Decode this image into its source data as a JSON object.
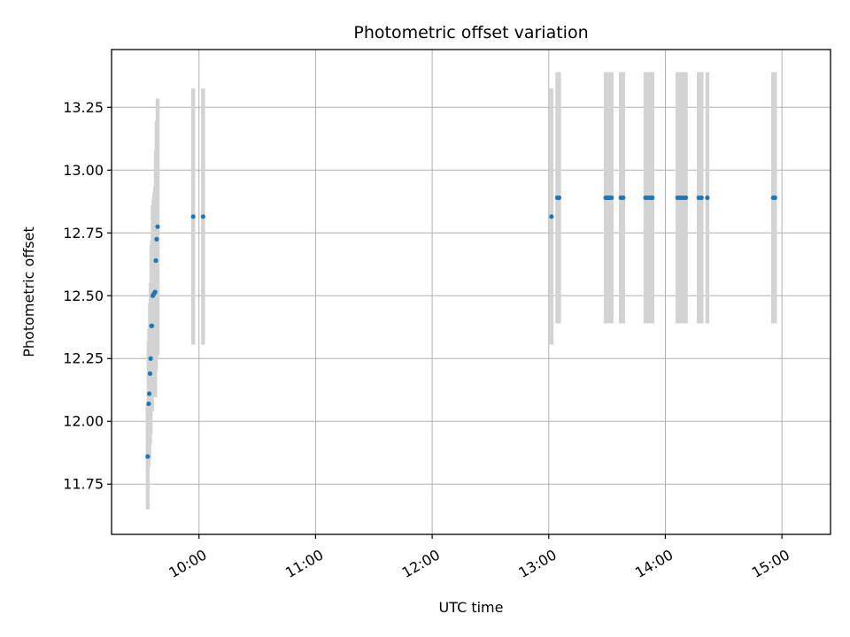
{
  "chart_data": {
    "type": "scatter",
    "title": "Photometric offset variation",
    "xlabel": "UTC time",
    "ylabel": "Photometric offset",
    "xlim": [
      "09:15",
      "15:25"
    ],
    "ylim": [
      11.55,
      13.48
    ],
    "x_ticks": [
      "10:00",
      "11:00",
      "12:00",
      "13:00",
      "14:00",
      "15:00"
    ],
    "y_ticks": [
      "11.75",
      "12.00",
      "12.25",
      "12.50",
      "12.75",
      "13.00",
      "13.25"
    ],
    "grid": true,
    "colors": {
      "points": "#1f77b4",
      "errorbars": "#d3d3d3",
      "grid": "#b0b0b0"
    },
    "points": [
      {
        "t": "09:33:36",
        "y": 11.86,
        "err": 0.21
      },
      {
        "t": "09:34:06",
        "y": 12.07,
        "err": 0.25
      },
      {
        "t": "09:34:24",
        "y": 12.11,
        "err": 0.26
      },
      {
        "t": "09:34:48",
        "y": 12.19,
        "err": 0.28
      },
      {
        "t": "09:35:06",
        "y": 12.25,
        "err": 0.3
      },
      {
        "t": "09:35:30",
        "y": 12.38,
        "err": 0.32
      },
      {
        "t": "09:35:48",
        "y": 12.38,
        "err": 0.34
      },
      {
        "t": "09:36:12",
        "y": 12.5,
        "err": 0.36
      },
      {
        "t": "09:36:36",
        "y": 12.505,
        "err": 0.38
      },
      {
        "t": "09:37:00",
        "y": 12.51,
        "err": 0.4
      },
      {
        "t": "09:37:24",
        "y": 12.515,
        "err": 0.42
      },
      {
        "t": "09:37:48",
        "y": 12.64,
        "err": 0.44
      },
      {
        "t": "09:38:12",
        "y": 12.725,
        "err": 0.47
      },
      {
        "t": "09:38:42",
        "y": 12.775,
        "err": 0.51
      },
      {
        "t": "09:57:00",
        "y": 12.815,
        "err": 0.51
      },
      {
        "t": "10:02:06",
        "y": 12.815,
        "err": 0.51
      },
      {
        "t": "13:01:24",
        "y": 12.815,
        "err": 0.51
      },
      {
        "t": "13:04:24",
        "y": 12.89,
        "err": 0.5
      },
      {
        "t": "13:05:18",
        "y": 12.89,
        "err": 0.5
      },
      {
        "t": "13:29:18",
        "y": 12.89,
        "err": 0.5
      },
      {
        "t": "13:30:18",
        "y": 12.89,
        "err": 0.5
      },
      {
        "t": "13:31:18",
        "y": 12.89,
        "err": 0.5
      },
      {
        "t": "13:32:18",
        "y": 12.89,
        "err": 0.5
      },
      {
        "t": "13:37:06",
        "y": 12.89,
        "err": 0.5
      },
      {
        "t": "13:38:18",
        "y": 12.89,
        "err": 0.5
      },
      {
        "t": "13:49:48",
        "y": 12.89,
        "err": 0.5
      },
      {
        "t": "13:50:42",
        "y": 12.89,
        "err": 0.5
      },
      {
        "t": "13:52:12",
        "y": 12.89,
        "err": 0.5
      },
      {
        "t": "13:53:18",
        "y": 12.89,
        "err": 0.5
      },
      {
        "t": "14:06:18",
        "y": 12.89,
        "err": 0.5
      },
      {
        "t": "14:07:42",
        "y": 12.89,
        "err": 0.5
      },
      {
        "t": "14:09:06",
        "y": 12.89,
        "err": 0.5
      },
      {
        "t": "14:10:30",
        "y": 12.89,
        "err": 0.5
      },
      {
        "t": "14:17:12",
        "y": 12.89,
        "err": 0.5
      },
      {
        "t": "14:18:36",
        "y": 12.89,
        "err": 0.5
      },
      {
        "t": "14:21:36",
        "y": 12.89,
        "err": 0.5
      },
      {
        "t": "14:55:30",
        "y": 12.89,
        "err": 0.5
      },
      {
        "t": "14:56:24",
        "y": 12.89,
        "err": 0.5
      }
    ]
  }
}
